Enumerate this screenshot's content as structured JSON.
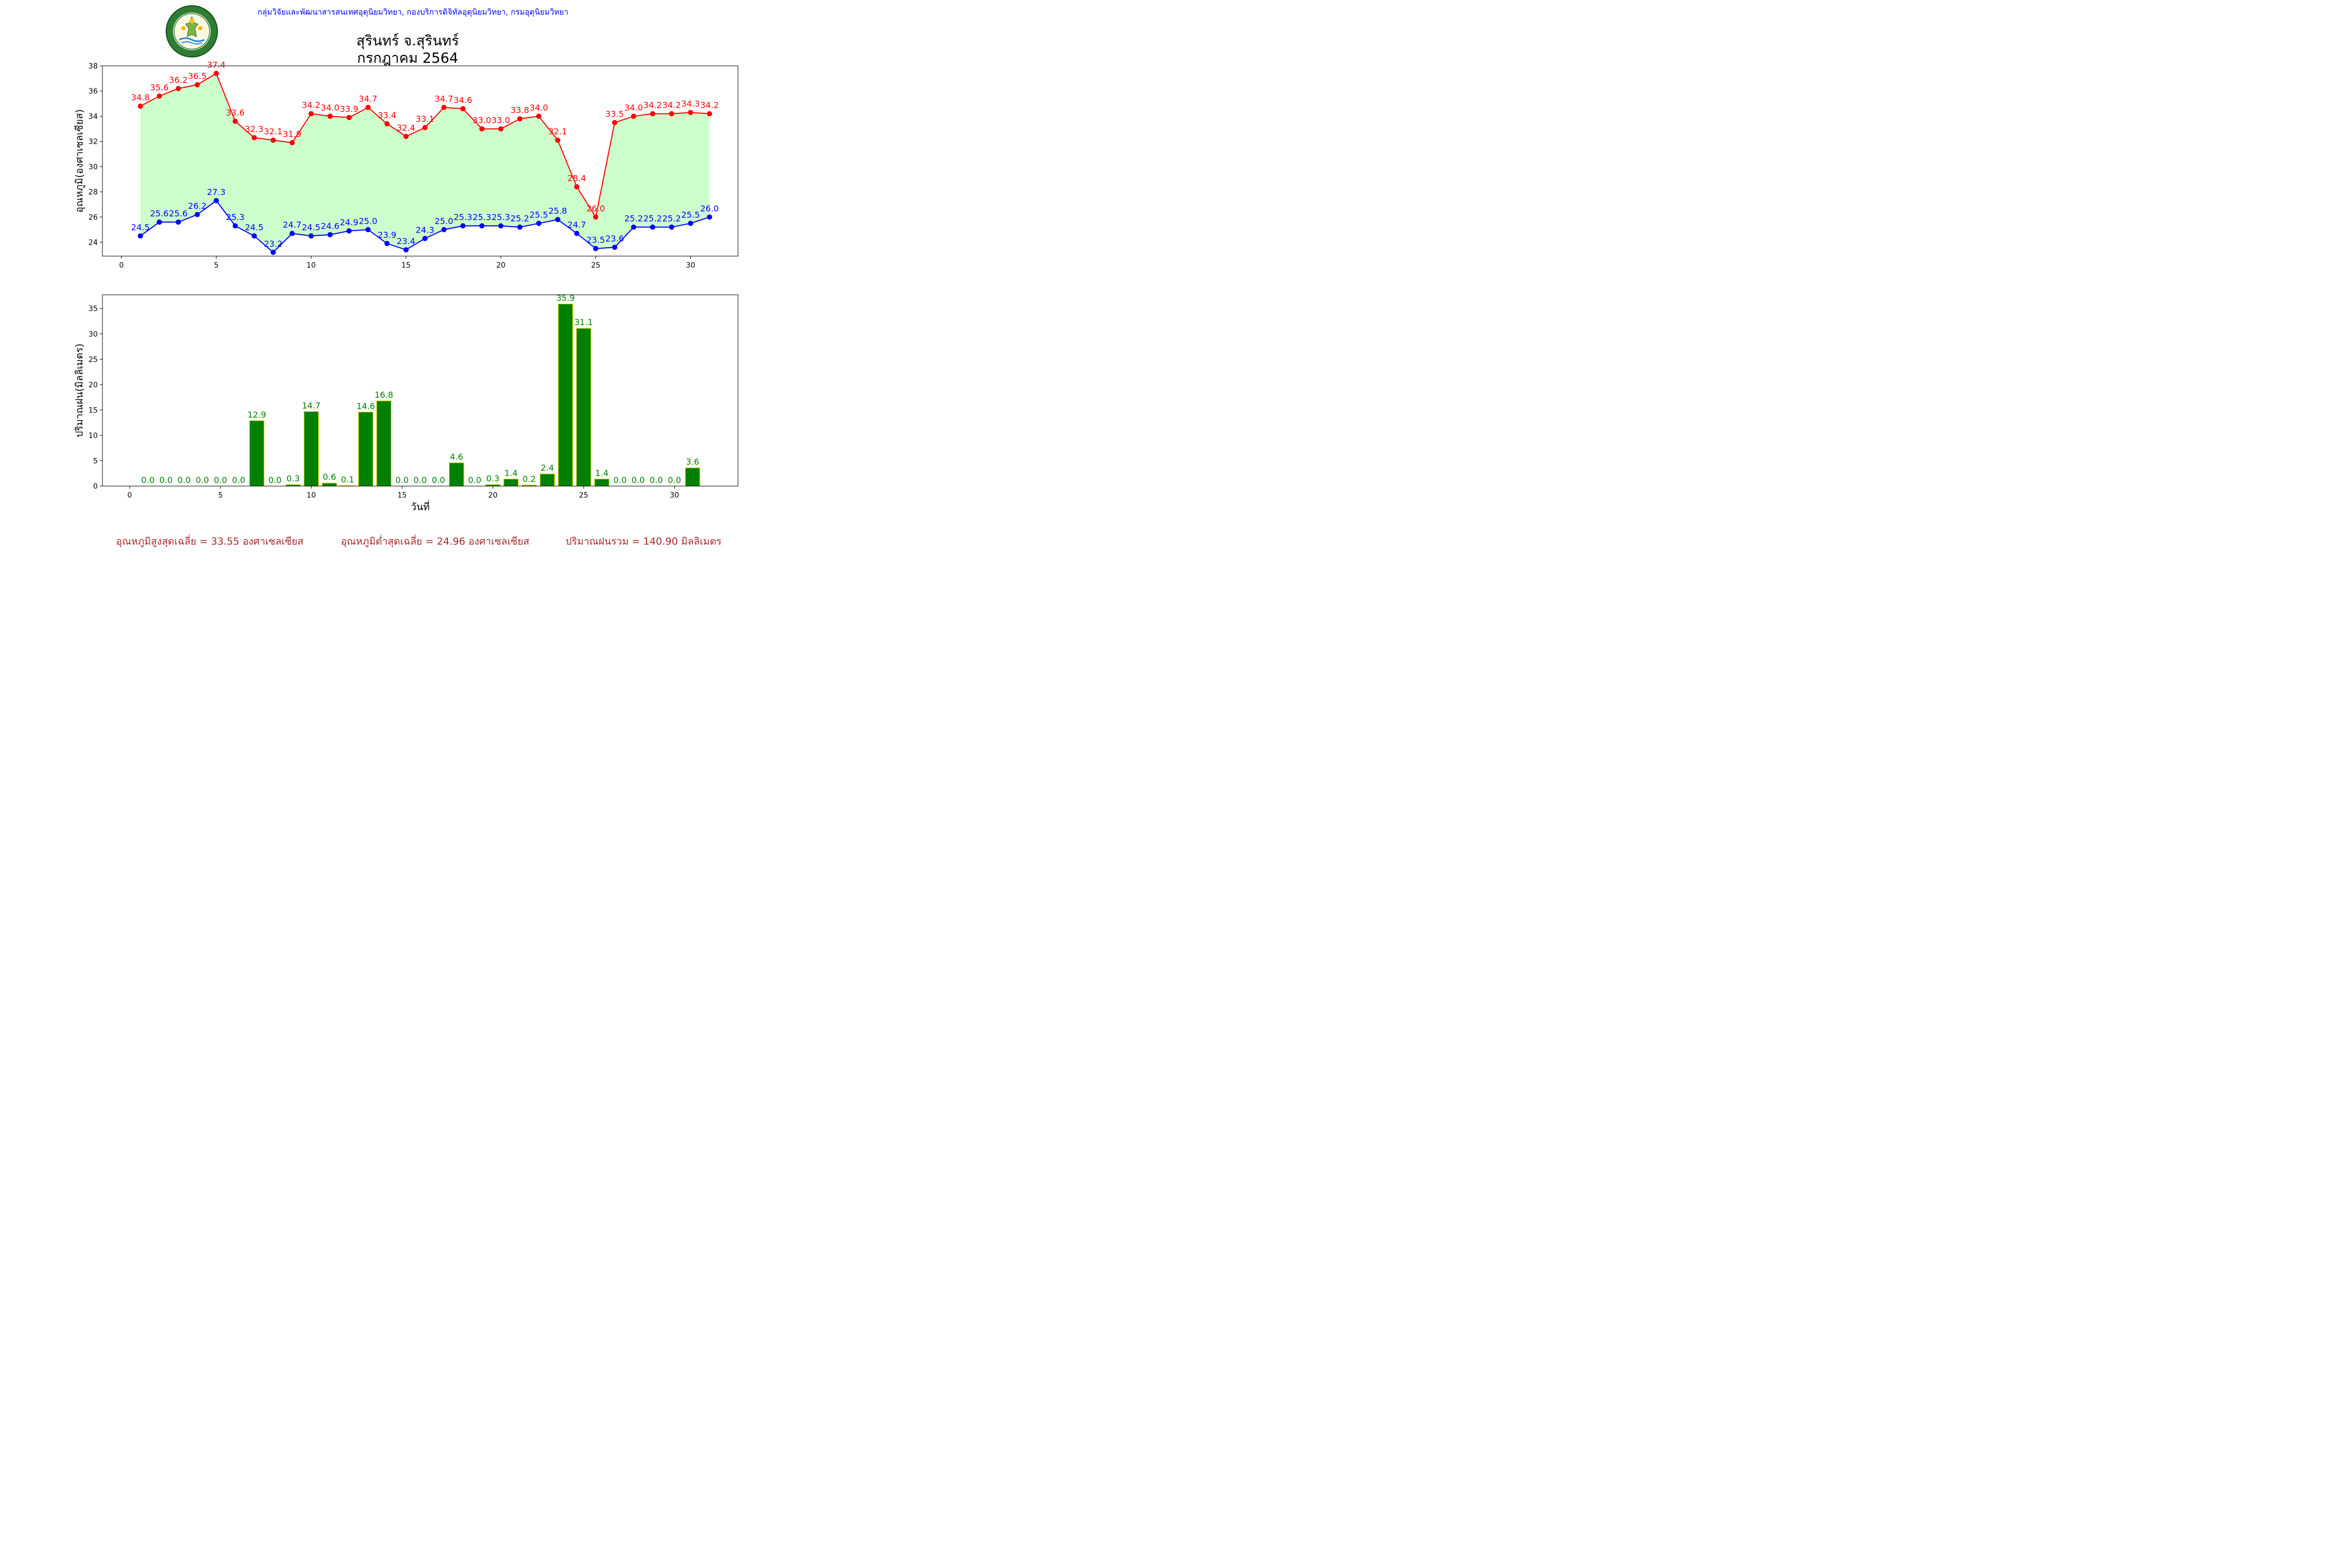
{
  "header": "กลุ่มวิจัยและพัฒนาสารสนเทศอุตุนิยมวิทยา, กองบริการดิจิทัลอุตุนิยมวิทยา, กรมอุตุนิยมวิทยา",
  "title": {
    "line1": "สุรินทร์ จ.สุรินทร์",
    "line2": "กรกฎาคม 2564"
  },
  "logo": {
    "text": "METEOROLOGICAL DEPARTMENT",
    "text_top": "กรมอุตุนิยมวิทยา"
  },
  "colors": {
    "max": "#ff0000",
    "min": "#0000ff",
    "fill": "#ccffcc",
    "bar": "#008000",
    "bar_edge": "#e6d800",
    "footer": "#a52a2a"
  },
  "chart_data": [
    {
      "type": "line",
      "ylabel": "อุณหภูมิ(องศาเซลเซียส)",
      "xlim": [
        -1,
        32.5
      ],
      "ylim": [
        22.9,
        38.0
      ],
      "xticks": [
        0,
        5,
        10,
        15,
        20,
        25,
        30
      ],
      "yticks": [
        24,
        26,
        28,
        30,
        32,
        34,
        36,
        38
      ],
      "x": [
        1,
        2,
        3,
        4,
        5,
        6,
        7,
        8,
        9,
        10,
        11,
        12,
        13,
        14,
        15,
        16,
        17,
        18,
        19,
        20,
        21,
        22,
        23,
        24,
        25,
        26,
        27,
        28,
        29,
        30,
        31
      ],
      "series": [
        {
          "key": "max",
          "values": [
            34.8,
            35.6,
            36.2,
            36.5,
            37.4,
            33.6,
            32.3,
            32.1,
            31.9,
            34.2,
            34.0,
            33.9,
            34.7,
            33.4,
            32.4,
            33.1,
            34.7,
            34.6,
            33.0,
            33.0,
            33.8,
            34.0,
            32.1,
            28.4,
            26.0,
            33.5,
            34.0,
            34.2,
            34.2,
            34.3,
            34.2
          ]
        },
        {
          "key": "min",
          "values": [
            24.5,
            25.6,
            25.6,
            26.2,
            27.3,
            25.3,
            24.5,
            23.2,
            24.7,
            24.5,
            24.6,
            24.9,
            25.0,
            23.9,
            23.4,
            24.3,
            25.0,
            25.3,
            25.3,
            25.3,
            25.2,
            25.5,
            25.8,
            24.7,
            23.5,
            23.6,
            25.2,
            25.2,
            25.2,
            25.5,
            26.0
          ]
        }
      ],
      "grid": false
    },
    {
      "type": "bar",
      "ylabel": "ปริมาณฝน(มิลลิเมตร)",
      "xlabel": "วันที่",
      "xlim": [
        -1.5,
        33.5
      ],
      "ylim": [
        0,
        37.7
      ],
      "xticks": [
        0,
        5,
        10,
        15,
        20,
        25,
        30
      ],
      "yticks": [
        0,
        5,
        10,
        15,
        20,
        25,
        30,
        35
      ],
      "categories": [
        1,
        2,
        3,
        4,
        5,
        6,
        7,
        8,
        9,
        10,
        11,
        12,
        13,
        14,
        15,
        16,
        17,
        18,
        19,
        20,
        21,
        22,
        23,
        24,
        25,
        26,
        27,
        28,
        29,
        30,
        31
      ],
      "values": [
        0.0,
        0.0,
        0.0,
        0.0,
        0.0,
        0.0,
        12.9,
        0.0,
        0.3,
        14.7,
        0.6,
        0.1,
        14.6,
        16.8,
        0.0,
        0.0,
        0.0,
        4.6,
        0.0,
        0.3,
        1.4,
        0.2,
        2.4,
        35.9,
        31.1,
        1.4,
        0.0,
        0.0,
        0.0,
        0.0,
        3.6
      ],
      "grid": false
    }
  ],
  "footer": {
    "avg_max": "อุณหภูมิสูงสุดเฉลี่ย = 33.55 องศาเซลเซียส",
    "avg_min": "อุณหภูมิต่ำสุดเฉลี่ย = 24.96 องศาเซลเซียส",
    "total_rain": "ปริมาณฝนรวม = 140.90 มิลลิเมตร"
  }
}
